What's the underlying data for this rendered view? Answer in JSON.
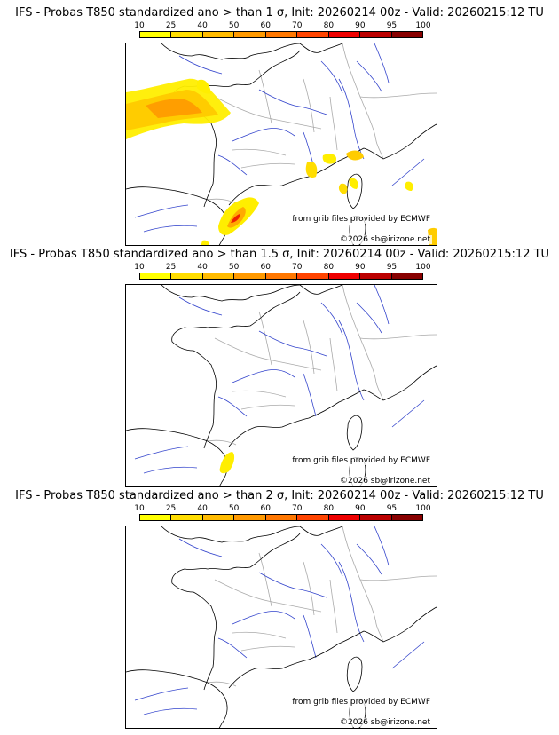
{
  "panels": [
    {
      "title": "IFS - Probas T850  standardized ano > than 1 σ, Init: 20260214 00z - Valid: 20260215:12 TU"
    },
    {
      "title": "IFS - Probas T850  standardized ano > than 1.5 σ, Init: 20260214 00z - Valid: 20260215:12 TU"
    },
    {
      "title": "IFS - Probas T850  standardized ano > than 2 σ, Init: 20260214 00z - Valid: 20260215:12 TU"
    }
  ],
  "colorbar": {
    "ticks": [
      "10",
      "25",
      "40",
      "50",
      "60",
      "70",
      "80",
      "90",
      "95",
      "100"
    ],
    "colors": [
      "#ffff00",
      "#ffdd00",
      "#ffbb00",
      "#ff9900",
      "#ff7700",
      "#ff4400",
      "#ee0000",
      "#bb0000",
      "#880000"
    ]
  },
  "credits": {
    "source": "from grib files provided by ECMWF",
    "copyright": "©2026 sb@irizone.net"
  },
  "colors": {
    "coast": "#000000",
    "rivers": "#3344cc",
    "borders": "#aaaaaa"
  }
}
